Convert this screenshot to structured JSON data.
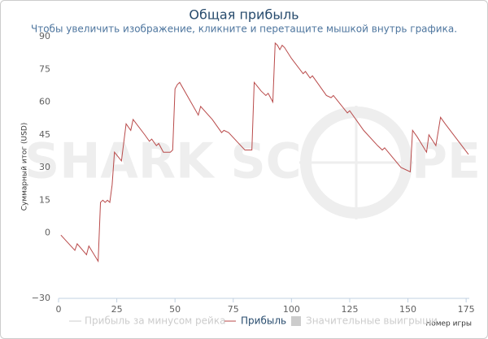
{
  "chart_data": {
    "type": "line",
    "title": "Общая прибыль",
    "subtitle": "Чтобы увеличить изображение, кликните и перетащите мышкой внутрь графика.",
    "x_label": "Номер игры",
    "y_label": "Суммарный итог (USD)",
    "watermark": [
      "SHARK SC",
      "PE"
    ],
    "legend": [
      {
        "name": "Прибыль за минусом рейка",
        "color": "#cccccc"
      },
      {
        "name": "Значительные выигрыши",
        "color": "#cccccc"
      }
    ],
    "x": [
      1,
      7,
      8,
      12,
      13,
      17,
      18,
      19,
      20,
      21,
      22,
      23,
      24,
      27,
      29,
      31,
      32,
      37,
      39,
      40,
      42,
      43,
      45,
      47,
      48,
      49,
      50,
      51,
      52,
      60,
      61,
      66,
      70,
      71,
      73,
      80,
      83,
      84,
      87,
      89,
      90,
      92,
      93,
      94,
      95,
      96,
      97,
      100,
      105,
      106,
      108,
      109,
      111,
      115,
      117,
      118,
      124,
      125,
      131,
      137,
      139,
      140,
      147,
      151,
      152,
      154,
      158,
      159,
      162,
      164,
      166,
      176
    ],
    "series": [
      {
        "name": "Прибыль",
        "color": "#b94a4a",
        "values": [
          -1,
          -8,
          -5,
          -10,
          -6,
          -13,
          14,
          15,
          14,
          15,
          14,
          22,
          37,
          33,
          50,
          47,
          52,
          45,
          42,
          43,
          40,
          41,
          37,
          37,
          37,
          38,
          66,
          68,
          69,
          54,
          58,
          52,
          46,
          47,
          46,
          38,
          38,
          69,
          65,
          63,
          64,
          60,
          87,
          86,
          84,
          86,
          85,
          80,
          73,
          74,
          71,
          72,
          69,
          63,
          62,
          63,
          55,
          56,
          47,
          40,
          38,
          39,
          30,
          28,
          47,
          44,
          37,
          45,
          40,
          53,
          50,
          36
        ]
      }
    ],
    "xlim": [
      0,
      176
    ],
    "xticks": [
      0,
      25,
      50,
      75,
      100,
      125,
      150,
      175
    ],
    "ylim": [
      -30,
      90
    ],
    "yticks": [
      90,
      75,
      60,
      45,
      30,
      15,
      0,
      {
        "value": -30,
        "label": "−30"
      }
    ]
  }
}
